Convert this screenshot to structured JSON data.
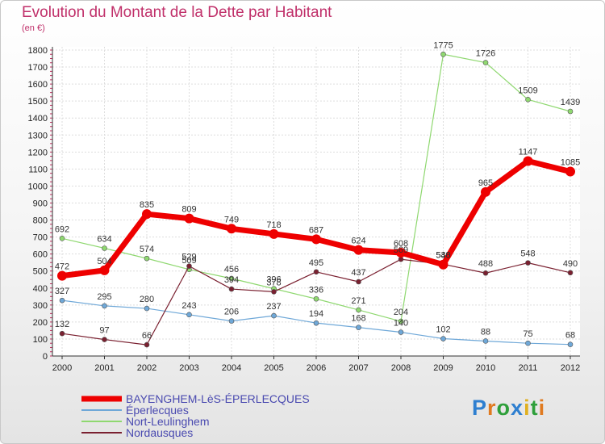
{
  "title": "Evolution du Montant de la Dette par Habitant",
  "subtitle": "(en €)",
  "logo": {
    "text": "Proxiti",
    "letter_colors": [
      "#2e7fd0",
      "#e07a20",
      "#2e9f3a",
      "#2e7fd0",
      "#e0b020",
      "#2e9f3a",
      "#e07a20"
    ]
  },
  "chart_data": {
    "type": "line",
    "x": [
      "2000",
      "2001",
      "2002",
      "2003",
      "2004",
      "2005",
      "2006",
      "2007",
      "2008",
      "2009",
      "2010",
      "2011",
      "2012"
    ],
    "ylim": [
      0,
      1800
    ],
    "yticks": [
      0,
      100,
      200,
      300,
      400,
      500,
      600,
      700,
      800,
      900,
      1000,
      1100,
      1200,
      1300,
      1400,
      1500,
      1600,
      1700,
      1800
    ],
    "grid": true,
    "legend_position": "bottom-left",
    "series": [
      {
        "name": "BAYENGHEM-LèS-ÉPERLECQUES",
        "color": "#ee0000",
        "width": 7,
        "values": [
          472,
          504,
          835,
          809,
          749,
          718,
          687,
          624,
          608,
          538,
          965,
          1147,
          1085
        ],
        "labels": [
          "472",
          "504",
          "835",
          "809",
          "749",
          "718",
          "687",
          "624",
          "608",
          "538",
          "965",
          "1147",
          "1085"
        ]
      },
      {
        "name": "Éperlecques",
        "color": "#6fa8d8",
        "width": 1.2,
        "values": [
          327,
          295,
          280,
          243,
          206,
          237,
          194,
          168,
          140,
          102,
          88,
          75,
          68
        ],
        "labels": [
          "327",
          "295",
          "280",
          "243",
          "206",
          "237",
          "194",
          "168",
          "140",
          "102",
          "88",
          "75",
          "68"
        ]
      },
      {
        "name": "Nort-Leulinghem",
        "color": "#8fd870",
        "width": 1.2,
        "values": [
          692,
          634,
          574,
          509,
          456,
          396,
          336,
          271,
          204,
          1775,
          1726,
          1509,
          1439
        ],
        "labels": [
          "692",
          "634",
          "574",
          "509",
          "456",
          "396",
          "336",
          "271",
          "204",
          "1775",
          "1726",
          "1509",
          "1439"
        ]
      },
      {
        "name": "Nordausques",
        "color": "#7a2030",
        "width": 1.2,
        "values": [
          132,
          97,
          66,
          529,
          394,
          378,
          495,
          437,
          569,
          540,
          488,
          548,
          490
        ],
        "labels": [
          "132",
          "97",
          "66",
          "529",
          "394",
          "378",
          "495",
          "437",
          "569",
          "540",
          "488",
          "548",
          "490"
        ]
      }
    ]
  }
}
